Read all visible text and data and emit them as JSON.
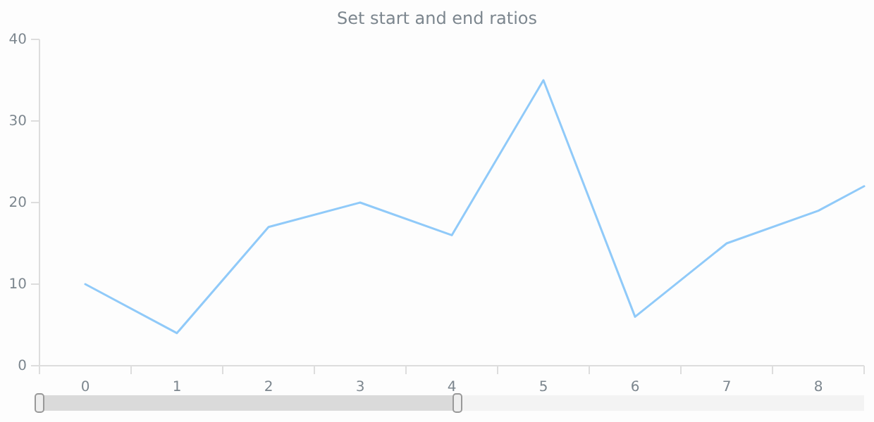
{
  "chart_data": {
    "type": "line",
    "title": "Set start and end ratios",
    "x": [
      0,
      1,
      2,
      3,
      4,
      5,
      6,
      7,
      8,
      8.5
    ],
    "series": [
      {
        "color": "#90caf9",
        "values": [
          10,
          4,
          17,
          20,
          16,
          35,
          6,
          15,
          19,
          22
        ]
      }
    ],
    "xlim": [
      -0.5,
      8.5
    ],
    "xticks": [
      {
        "value": -0.5,
        "label": null
      },
      {
        "value": 0,
        "label": "0"
      },
      {
        "value": 0.5,
        "label": null
      },
      {
        "value": 1,
        "label": "1"
      },
      {
        "value": 1.5,
        "label": null
      },
      {
        "value": 2,
        "label": "2"
      },
      {
        "value": 2.5,
        "label": null
      },
      {
        "value": 3,
        "label": "3"
      },
      {
        "value": 3.5,
        "label": null
      },
      {
        "value": 4,
        "label": "4"
      },
      {
        "value": 4.5,
        "label": null
      },
      {
        "value": 5,
        "label": "5"
      },
      {
        "value": 5.5,
        "label": null
      },
      {
        "value": 6,
        "label": "6"
      },
      {
        "value": 6.5,
        "label": null
      },
      {
        "value": 7,
        "label": "7"
      },
      {
        "value": 7.5,
        "label": null
      },
      {
        "value": 8,
        "label": "8"
      },
      {
        "value": 8.5,
        "label": null
      }
    ],
    "ylim": [
      0,
      40
    ],
    "yticks": [
      0,
      10,
      20,
      30,
      40
    ],
    "grid": false,
    "marker": "none",
    "line_style": "solid"
  }
}
